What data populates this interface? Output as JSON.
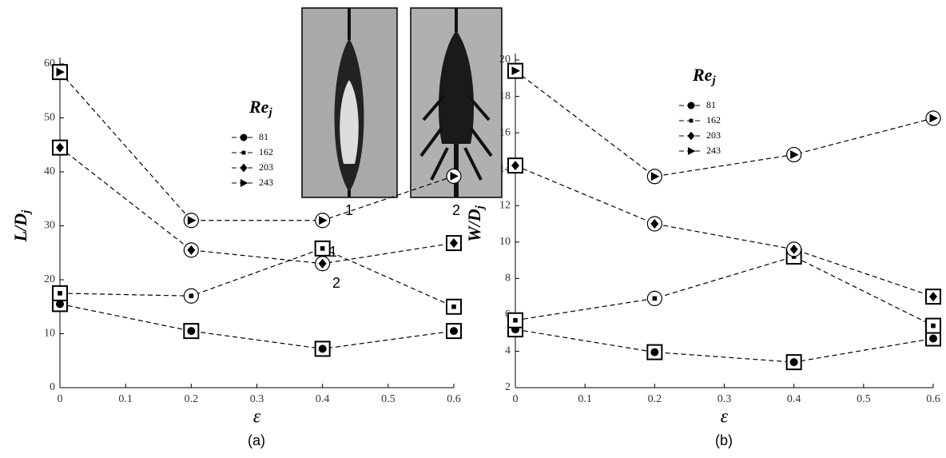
{
  "chart_data": [
    {
      "type": "line",
      "caption": "(a)",
      "ylabel": "L/D",
      "ylabel_sub": "j",
      "xlabel": "ε",
      "legend_title": "Re",
      "legend_title_sub": "j",
      "x": [
        0,
        0.2,
        0.4,
        0.6
      ],
      "xlim": [
        0,
        0.6
      ],
      "xticks": [
        0,
        0.1,
        0.2,
        0.3,
        0.4,
        0.5,
        0.6
      ],
      "ylim": [
        0,
        60
      ],
      "yticks": [
        0,
        10,
        20,
        30,
        40,
        50,
        60
      ],
      "regime_shapes": {
        "1": "square",
        "2": "circle"
      },
      "series": [
        {
          "name": "81",
          "marker": "circle",
          "color": "#000000",
          "values": [
            15.5,
            10.5,
            7.2,
            10.5
          ],
          "regimes": [
            1,
            1,
            1,
            1
          ]
        },
        {
          "name": "162",
          "marker": "square",
          "color": "#000000",
          "values": [
            17.5,
            17,
            25.8,
            15
          ],
          "regimes": [
            1,
            2,
            1,
            1
          ]
        },
        {
          "name": "203",
          "marker": "diamond",
          "color": "#000000",
          "values": [
            44.5,
            25.5,
            23,
            26.8
          ],
          "regimes": [
            1,
            2,
            2,
            1
          ]
        },
        {
          "name": "243",
          "marker": "triangle",
          "color": "#000000",
          "values": [
            58.5,
            31,
            31,
            39.2
          ],
          "regimes": [
            1,
            2,
            2,
            2
          ]
        }
      ],
      "annotations": [
        "1",
        "2"
      ]
    },
    {
      "type": "line",
      "caption": "(b)",
      "ylabel": "W/D",
      "ylabel_sub": "j",
      "xlabel": "ε",
      "legend_title": "Re",
      "legend_title_sub": "j",
      "x": [
        0,
        0.2,
        0.4,
        0.6
      ],
      "xlim": [
        0,
        0.6
      ],
      "xticks": [
        0,
        0.1,
        0.2,
        0.3,
        0.4,
        0.5,
        0.6
      ],
      "ylim": [
        2,
        20
      ],
      "yticks": [
        2,
        4,
        6,
        8,
        10,
        12,
        14,
        16,
        18,
        20
      ],
      "regime_shapes": {
        "1": "square",
        "2": "circle"
      },
      "series": [
        {
          "name": "81",
          "marker": "circle",
          "color": "#000000",
          "values": [
            5.2,
            3.95,
            3.4,
            4.7
          ],
          "regimes": [
            1,
            1,
            1,
            1
          ]
        },
        {
          "name": "162",
          "marker": "square",
          "color": "#000000",
          "values": [
            5.7,
            6.9,
            9.2,
            5.4
          ],
          "regimes": [
            1,
            2,
            1,
            1
          ]
        },
        {
          "name": "203",
          "marker": "diamond",
          "color": "#000000",
          "values": [
            14.2,
            11,
            9.6,
            7
          ],
          "regimes": [
            1,
            2,
            2,
            1
          ]
        },
        {
          "name": "243",
          "marker": "triangle",
          "color": "#000000",
          "values": [
            19.4,
            13.6,
            14.8,
            16.8
          ],
          "regimes": [
            1,
            2,
            2,
            2
          ]
        }
      ]
    }
  ],
  "images": [
    {
      "label": "1"
    },
    {
      "label": "2"
    }
  ]
}
